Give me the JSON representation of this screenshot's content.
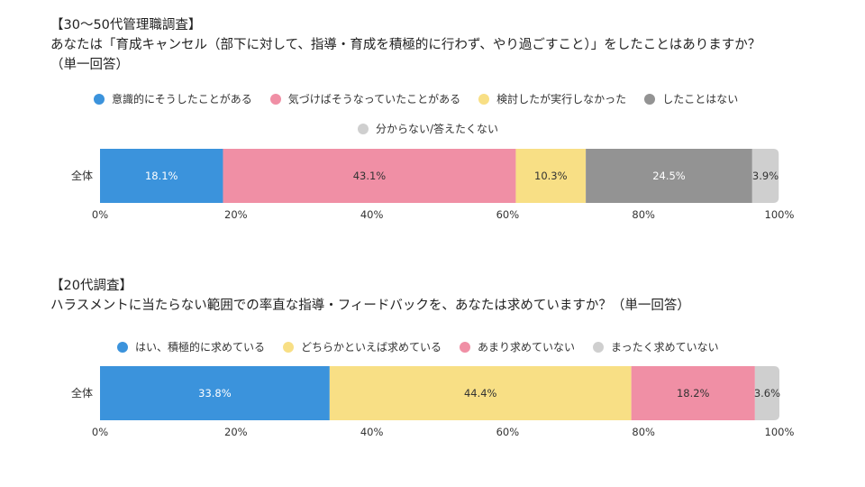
{
  "chart_data": [
    {
      "type": "bar",
      "orientation": "horizontal-stacked",
      "title": "【30〜50代管理職調査】",
      "subtitle": "あなたは「育成キャンセル（部下に対して、指導・育成を積極的に行わず、やり過ごすこと）」をしたことはありますか？",
      "note": "（単一回答）",
      "categories": [
        "全体"
      ],
      "series": [
        {
          "name": "意識的にそうしたことがある",
          "values": [
            18.1
          ],
          "label": "18.1%",
          "color": "#3b93dc",
          "label_color": "#ffffff"
        },
        {
          "name": "気づけばそうなっていたことがある",
          "values": [
            43.1
          ],
          "label": "43.1%",
          "color": "#f08fa5",
          "label_color": "#333333"
        },
        {
          "name": "検討したが実行しなかった",
          "values": [
            10.3
          ],
          "label": "10.3%",
          "color": "#f8df85",
          "label_color": "#333333"
        },
        {
          "name": "したことはない",
          "values": [
            24.5
          ],
          "label": "24.5%",
          "color": "#939393",
          "label_color": "#ffffff"
        },
        {
          "name": "分からない/答えたくない",
          "values": [
            3.9
          ],
          "label": "3.9%",
          "color": "#cfcfcf",
          "label_color": "#333333"
        }
      ],
      "xlim": [
        0,
        100
      ],
      "ticks": [
        "0%",
        "20%",
        "40%",
        "60%",
        "80%",
        "100%"
      ],
      "legend": "top"
    },
    {
      "type": "bar",
      "orientation": "horizontal-stacked",
      "title": "【20代調査】",
      "subtitle": "ハラスメントに当たらない範囲での率直な指導・フィードバックを、あなたは求めていますか？（単一回答）",
      "categories": [
        "全体"
      ],
      "series": [
        {
          "name": "はい、積極的に求めている",
          "values": [
            33.8
          ],
          "label": "33.8%",
          "color": "#3b93dc",
          "label_color": "#ffffff"
        },
        {
          "name": "どちらかといえば求めている",
          "values": [
            44.4
          ],
          "label": "44.4%",
          "color": "#f8df85",
          "label_color": "#333333"
        },
        {
          "name": "あまり求めていない",
          "values": [
            18.2
          ],
          "label": "18.2%",
          "color": "#f08fa5",
          "label_color": "#333333"
        },
        {
          "name": "まったく求めていない",
          "values": [
            3.6
          ],
          "label": "3.6%",
          "color": "#cfcfcf",
          "label_color": "#333333"
        }
      ],
      "xlim": [
        0,
        100
      ],
      "ticks": [
        "0%",
        "20%",
        "40%",
        "60%",
        "80%",
        "100%"
      ],
      "legend": "top"
    }
  ]
}
